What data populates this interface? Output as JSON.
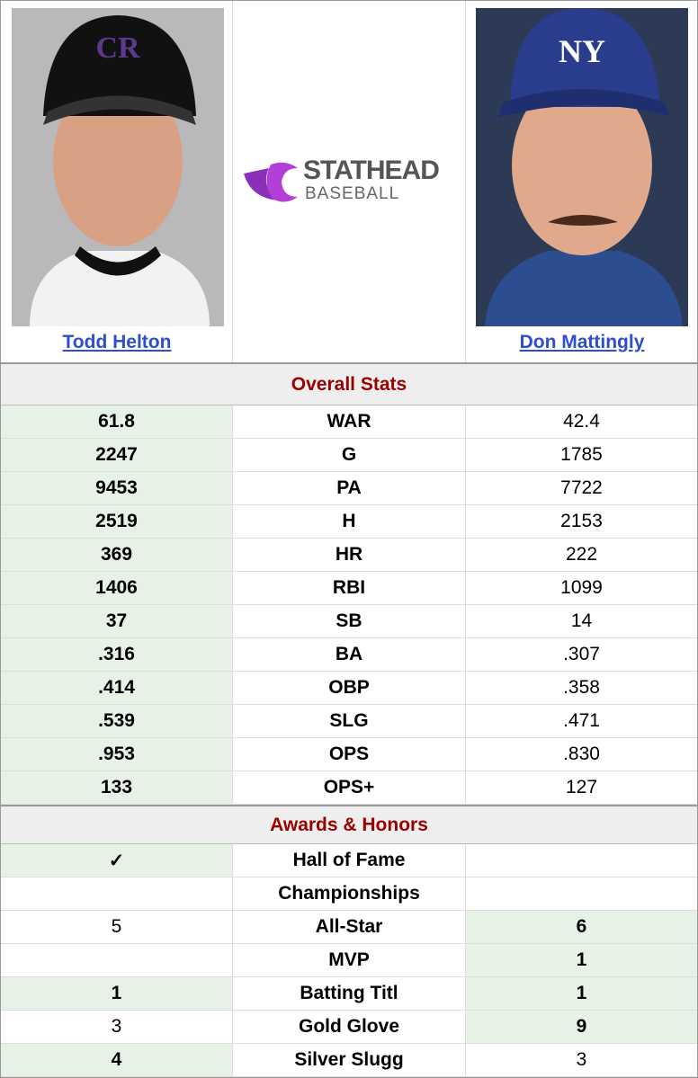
{
  "header": {
    "logo": {
      "title": "STATHEAD",
      "subtitle": "BASEBALL"
    },
    "players": [
      {
        "name": "Todd Helton"
      },
      {
        "name": "Don Mattingly"
      }
    ]
  },
  "sections": [
    {
      "title": "Overall Stats",
      "rows": [
        {
          "stat": "WAR",
          "left": "61.8",
          "right": "42.4",
          "highlight": [
            "left"
          ]
        },
        {
          "stat": "G",
          "left": "2247",
          "right": "1785",
          "highlight": [
            "left"
          ]
        },
        {
          "stat": "PA",
          "left": "9453",
          "right": "7722",
          "highlight": [
            "left"
          ]
        },
        {
          "stat": "H",
          "left": "2519",
          "right": "2153",
          "highlight": [
            "left"
          ]
        },
        {
          "stat": "HR",
          "left": "369",
          "right": "222",
          "highlight": [
            "left"
          ]
        },
        {
          "stat": "RBI",
          "left": "1406",
          "right": "1099",
          "highlight": [
            "left"
          ]
        },
        {
          "stat": "SB",
          "left": "37",
          "right": "14",
          "highlight": [
            "left"
          ]
        },
        {
          "stat": "BA",
          "left": ".316",
          "right": ".307",
          "highlight": [
            "left"
          ]
        },
        {
          "stat": "OBP",
          "left": ".414",
          "right": ".358",
          "highlight": [
            "left"
          ]
        },
        {
          "stat": "SLG",
          "left": ".539",
          "right": ".471",
          "highlight": [
            "left"
          ]
        },
        {
          "stat": "OPS",
          "left": ".953",
          "right": ".830",
          "highlight": [
            "left"
          ]
        },
        {
          "stat": "OPS+",
          "left": "133",
          "right": "127",
          "highlight": [
            "left"
          ]
        }
      ]
    },
    {
      "title": "Awards & Honors",
      "rows": [
        {
          "stat": "Hall of Fame",
          "left": "✓",
          "right": null,
          "highlight": [
            "left"
          ]
        },
        {
          "stat": "Championships",
          "left": null,
          "right": null,
          "highlight": []
        },
        {
          "stat": "All-Star",
          "left": "5",
          "right": "6",
          "highlight": [
            "right"
          ]
        },
        {
          "stat": "MVP",
          "left": null,
          "right": "1",
          "highlight": [
            "right"
          ]
        },
        {
          "stat": "Batting Titl",
          "left": "1",
          "right": "1",
          "highlight": [
            "left",
            "right"
          ]
        },
        {
          "stat": "Gold Glove",
          "left": "3",
          "right": "9",
          "highlight": [
            "right"
          ]
        },
        {
          "stat": "Silver Slugg",
          "left": "4",
          "right": "3",
          "highlight": [
            "left"
          ]
        }
      ]
    }
  ]
}
